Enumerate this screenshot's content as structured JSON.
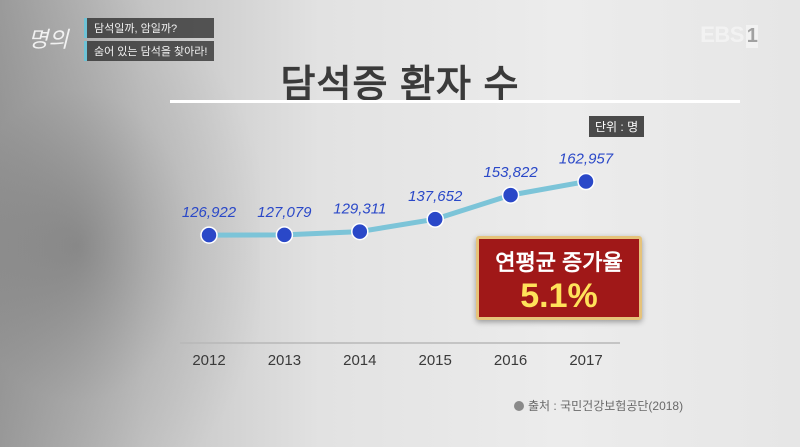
{
  "header": {
    "program_logo": "명의",
    "episode_lines": [
      "담석일까, 암일까?",
      "숨어 있는 담석을 찾아라!"
    ],
    "channel": "EBS",
    "channel_suffix": "1"
  },
  "unit_label": "단위 : 명",
  "callout": {
    "label": "연평균 증가율",
    "value": "5.1%"
  },
  "source": "출처 : 국민건강보험공단(2018)",
  "chart_data": {
    "type": "line",
    "title": "담석증 환자 수",
    "categories": [
      "2012",
      "2013",
      "2014",
      "2015",
      "2016",
      "2017"
    ],
    "values": [
      126922,
      127079,
      129311,
      137652,
      153822,
      162957
    ],
    "value_labels": [
      "126,922",
      "127,079",
      "129,311",
      "137,652",
      "153,822",
      "162,957"
    ],
    "line_color": "#7cc4d8",
    "point_color": "#2a48c8",
    "label_color": "#2a48c8",
    "grid": false,
    "legend": "none"
  }
}
